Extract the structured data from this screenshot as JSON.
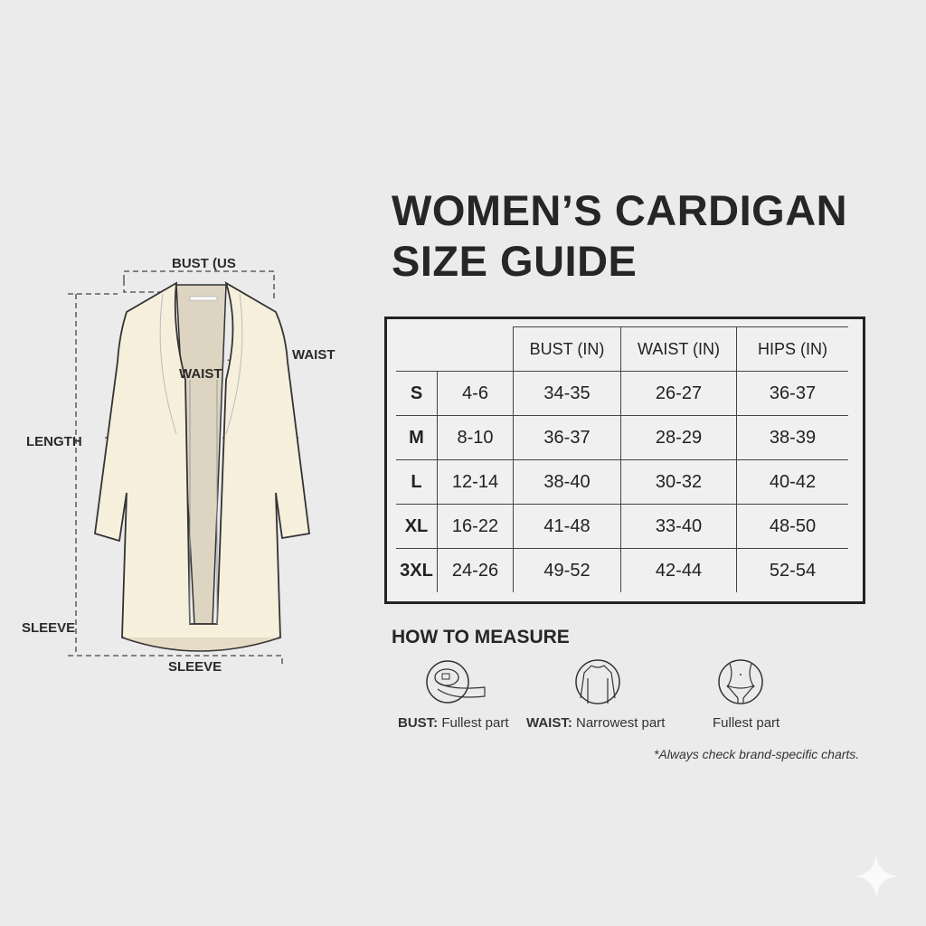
{
  "title": {
    "line1": "WOMEN’S CARDIGAN",
    "line2": "SIZE GUIDE"
  },
  "diagram": {
    "labels": {
      "bust": "BUST (US",
      "waist_right": "WAIST",
      "waist_center": "WAIST",
      "length": "LENGTH",
      "sleeve_left": "SLEEVE",
      "sleeve_bottom": "SLEEVE"
    },
    "garment_color": "#f6efdc",
    "lining_color": "#ddd5c2"
  },
  "table": {
    "headers": [
      "",
      "",
      "BUST (IN)",
      "WAIST (IN)",
      "HIPS (IN)"
    ],
    "rows": [
      [
        "S",
        "4-6",
        "34-35",
        "26-27",
        "36-37"
      ],
      [
        "M",
        "8-10",
        "36-37",
        "28-29",
        "38-39"
      ],
      [
        "L",
        "12-14",
        "38-40",
        "30-32",
        "40-42"
      ],
      [
        "XL",
        "16-22",
        "41-48",
        "33-40",
        "48-50"
      ],
      [
        "3XL",
        "24-26",
        "49-52",
        "42-44",
        "52-54"
      ]
    ]
  },
  "how_to_measure": {
    "heading": "HOW TO MEASURE",
    "items": [
      {
        "icon": "tape-measure-icon",
        "bold": "BUST:",
        "text": " Fullest part"
      },
      {
        "icon": "long-sleeve-top-icon",
        "bold": "WAIST:",
        "text": " Narrowest part"
      },
      {
        "icon": "hips-icon",
        "bold": "",
        "text": "Fullest part"
      }
    ]
  },
  "note": "*Always check brand-specific charts."
}
